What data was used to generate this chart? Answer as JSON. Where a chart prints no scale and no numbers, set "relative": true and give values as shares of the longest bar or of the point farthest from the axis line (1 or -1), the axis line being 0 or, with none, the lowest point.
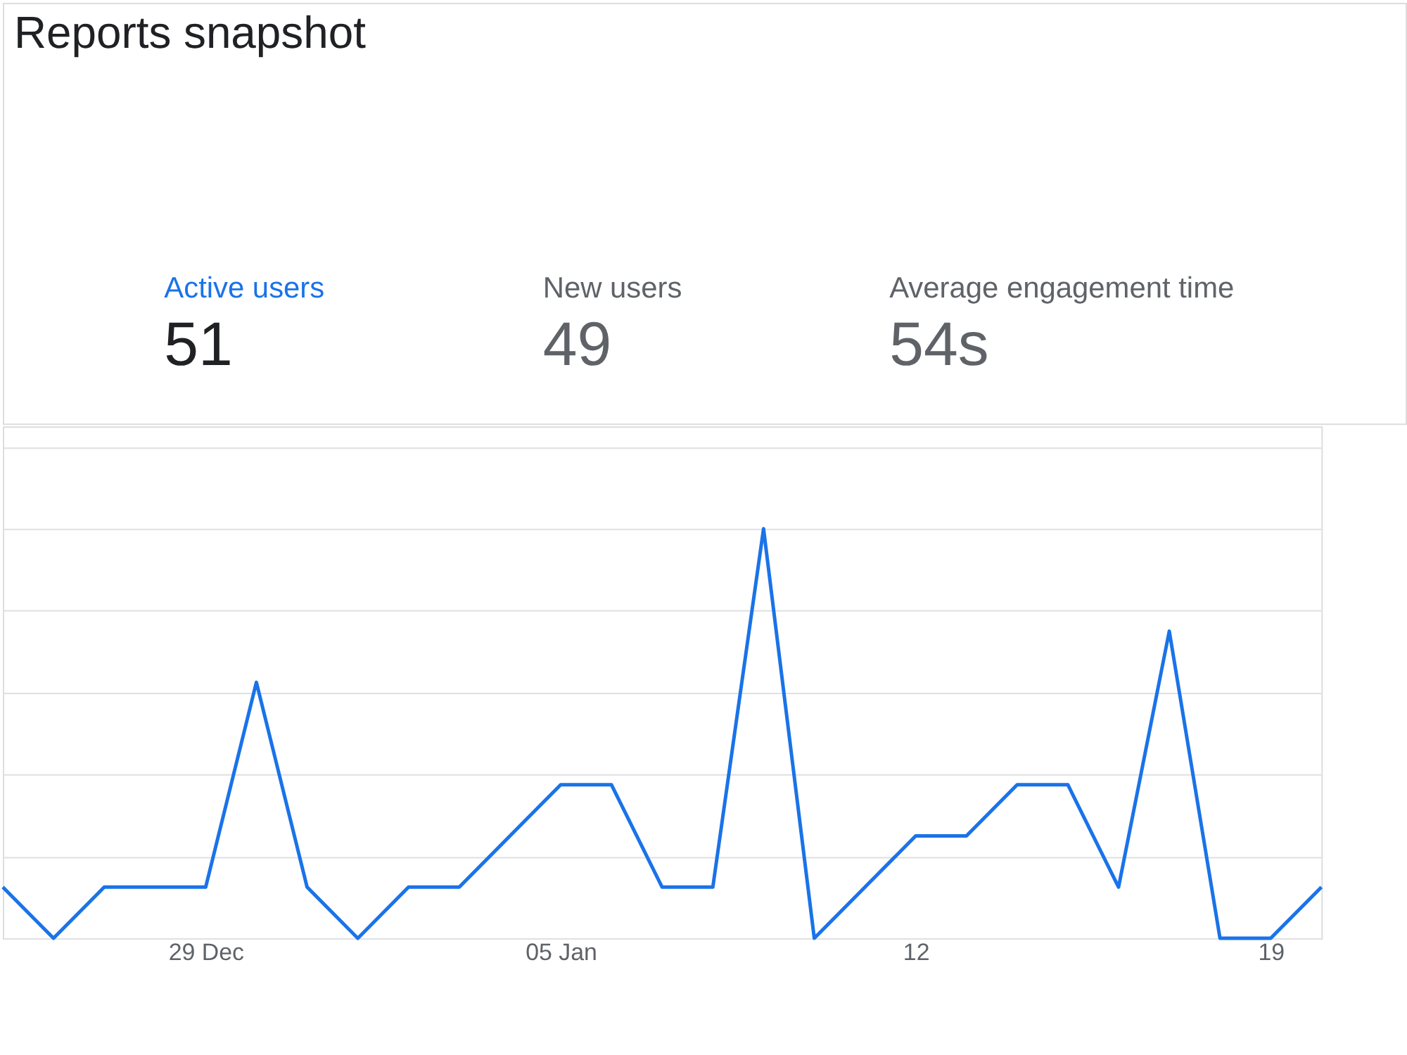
{
  "chart_data": {
    "type": "line",
    "title": "Reports snapshot",
    "annotations": [
      "Active users",
      "51",
      "New users",
      "49",
      "Average engagement time",
      "54s"
    ],
    "categories": [
      null,
      null,
      null,
      null,
      "29 Dec",
      null,
      null,
      null,
      null,
      null,
      null,
      "05 Jan",
      null,
      null,
      null,
      null,
      null,
      null,
      "12",
      null,
      null,
      null,
      null,
      null,
      null,
      "19",
      null
    ],
    "relative": true,
    "series": [
      {
        "color": "#1a73e8",
        "values": [
          0.125,
          0,
          0.125,
          0.125,
          0.125,
          0.625,
          0.125,
          0,
          0.125,
          0.125,
          0.25,
          0.375,
          0.375,
          0.125,
          0.125,
          1,
          0,
          0.125,
          0.25,
          0.25,
          0.375,
          0.375,
          0.125,
          0.75,
          0,
          0,
          0.125
        ]
      }
    ],
    "grid": "y",
    "marker": "none",
    "line_style": "solid"
  }
}
